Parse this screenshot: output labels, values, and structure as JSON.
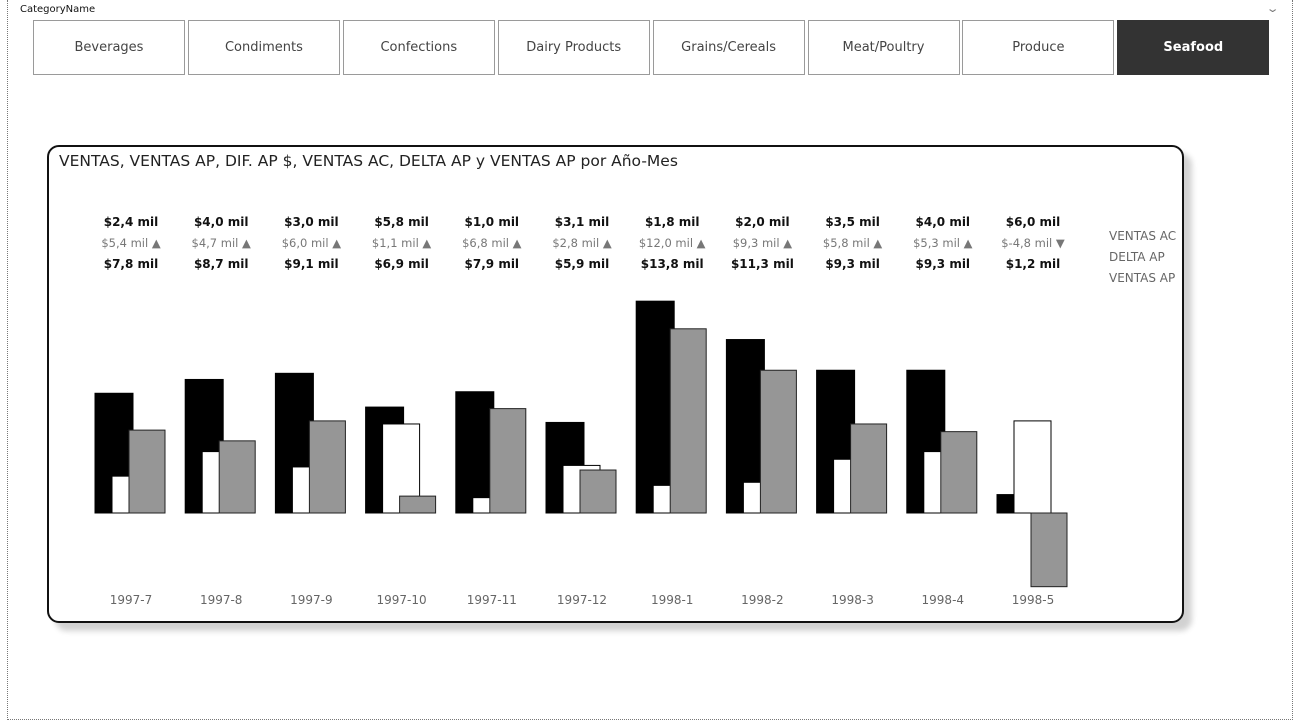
{
  "slicer": {
    "header": "CategoryName",
    "selected": "Seafood",
    "items": [
      "Beverages",
      "Condiments",
      "Confections",
      "Dairy Products",
      "Grains/Cereals",
      "Meat/Poultry",
      "Produce",
      "Seafood"
    ]
  },
  "chart_data": {
    "type": "bar",
    "title": "VENTAS, VENTAS AP, DIF. AP $, VENTAS AC, DELTA AP y VENTAS AP por Año-Mes",
    "categories": [
      "1997-7",
      "1997-8",
      "1997-9",
      "1997-10",
      "1997-11",
      "1997-12",
      "1998-1",
      "1998-2",
      "1998-3",
      "1998-4",
      "1998-5"
    ],
    "series": [
      {
        "name": "VENTAS AC",
        "color": "#000000",
        "values": [
          7.8,
          8.7,
          9.1,
          6.9,
          7.9,
          5.9,
          13.8,
          11.3,
          9.3,
          9.3,
          1.2
        ]
      },
      {
        "name": "DELTA AP",
        "color": "#ffffff",
        "values": [
          2.4,
          4.0,
          3.0,
          5.8,
          1.0,
          3.1,
          1.8,
          2.0,
          3.5,
          4.0,
          6.0
        ]
      },
      {
        "name": "VENTAS AP",
        "color": "#969696",
        "values": [
          5.4,
          4.7,
          6.0,
          1.1,
          6.8,
          2.8,
          12.0,
          9.3,
          5.8,
          5.3,
          -4.8
        ]
      }
    ],
    "data_labels": {
      "top": [
        "$2,4 mil",
        "$4,0 mil",
        "$3,0 mil",
        "$5,8 mil",
        "$1,0 mil",
        "$3,1 mil",
        "$1,8 mil",
        "$2,0 mil",
        "$3,5 mil",
        "$4,0 mil",
        "$6,0 mil"
      ],
      "middle": [
        "$5,4 mil ▲",
        "$4,7 mil ▲",
        "$6,0 mil ▲",
        "$1,1 mil ▲",
        "$6,8 mil ▲",
        "$2,8 mil ▲",
        "$12,0 mil ▲",
        "$9,3 mil ▲",
        "$5,8 mil ▲",
        "$5,3 mil ▲",
        "$-4,8 mil ▼"
      ],
      "bottom": [
        "$7,8 mil",
        "$8,7 mil",
        "$9,1 mil",
        "$6,9 mil",
        "$7,9 mil",
        "$5,9 mil",
        "$13,8 mil",
        "$11,3 mil",
        "$9,3 mil",
        "$9,3 mil",
        "$1,2 mil"
      ]
    },
    "legend": [
      "VENTAS AC",
      "DELTA AP",
      "VENTAS AP"
    ],
    "legend_position": "right",
    "ylim": [
      -4.8,
      13.8
    ],
    "grid": false,
    "xlabel": "",
    "ylabel": ""
  }
}
